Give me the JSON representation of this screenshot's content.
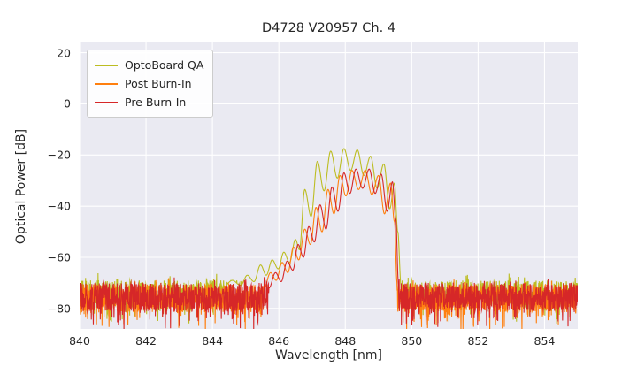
{
  "figure": {
    "background": "#ffffff"
  },
  "chart_data": {
    "type": "line",
    "title": "D4728 V20957 Ch. 4",
    "xlabel": "Wavelength [nm]",
    "ylabel": "Optical Power [dB]",
    "xlim": [
      840,
      855
    ],
    "ylim": [
      -88,
      24
    ],
    "xticks": [
      840,
      842,
      844,
      846,
      848,
      850,
      852,
      854
    ],
    "yticks": [
      20,
      0,
      -20,
      -40,
      -60,
      -80
    ],
    "grid": true,
    "plot_bg": "#eaeaf2",
    "grid_color": "#ffffff",
    "legend_position": "upper left",
    "series": [
      {
        "name": "OptoBoard QA",
        "color": "#bcbd22",
        "noise_floor_db": {
          "mean": -74,
          "amplitude": 5,
          "spike_depth": 8
        },
        "peak_points": [
          [
            844.3,
            -72
          ],
          [
            844.6,
            -69
          ],
          [
            844.85,
            -71
          ],
          [
            845.05,
            -67
          ],
          [
            845.25,
            -69.5
          ],
          [
            845.45,
            -63
          ],
          [
            845.62,
            -67
          ],
          [
            845.8,
            -61
          ],
          [
            845.98,
            -64.5
          ],
          [
            846.15,
            -58
          ],
          [
            846.32,
            -62
          ],
          [
            846.5,
            -53
          ],
          [
            846.62,
            -57
          ],
          [
            846.78,
            -33.5
          ],
          [
            846.97,
            -44
          ],
          [
            847.16,
            -22.5
          ],
          [
            847.36,
            -34
          ],
          [
            847.56,
            -18.5
          ],
          [
            847.76,
            -29
          ],
          [
            847.96,
            -17.5
          ],
          [
            848.16,
            -26
          ],
          [
            848.36,
            -18
          ],
          [
            848.56,
            -28
          ],
          [
            848.76,
            -20.5
          ],
          [
            848.96,
            -33
          ],
          [
            849.16,
            -23.5
          ],
          [
            849.34,
            -41
          ],
          [
            849.48,
            -31
          ],
          [
            849.58,
            -50
          ],
          [
            849.68,
            -71
          ]
        ]
      },
      {
        "name": "Post Burn-In",
        "color": "#ff7f0e",
        "noise_floor_db": {
          "mean": -76,
          "amplitude": 5.5,
          "spike_depth": 8
        },
        "peak_points": [
          [
            845.55,
            -72
          ],
          [
            845.75,
            -66
          ],
          [
            845.92,
            -69
          ],
          [
            846.1,
            -62
          ],
          [
            846.27,
            -66
          ],
          [
            846.44,
            -56
          ],
          [
            846.6,
            -61
          ],
          [
            846.78,
            -49
          ],
          [
            846.95,
            -55
          ],
          [
            847.12,
            -40.5
          ],
          [
            847.3,
            -50
          ],
          [
            847.48,
            -33.5
          ],
          [
            847.66,
            -43
          ],
          [
            847.84,
            -28
          ],
          [
            848.02,
            -36
          ],
          [
            848.2,
            -26
          ],
          [
            848.4,
            -33.5
          ],
          [
            848.6,
            -26
          ],
          [
            848.8,
            -35.5
          ],
          [
            849.0,
            -28
          ],
          [
            849.18,
            -43
          ],
          [
            849.36,
            -31
          ],
          [
            849.48,
            -46
          ],
          [
            849.56,
            -70
          ]
        ]
      },
      {
        "name": "Pre Burn-In",
        "color": "#d62728",
        "noise_floor_db": {
          "mean": -75.5,
          "amplitude": 5.5,
          "spike_depth": 8
        },
        "peak_points": [
          [
            845.7,
            -72
          ],
          [
            845.9,
            -66
          ],
          [
            846.07,
            -69.5
          ],
          [
            846.25,
            -61.5
          ],
          [
            846.42,
            -65
          ],
          [
            846.58,
            -55
          ],
          [
            846.74,
            -60
          ],
          [
            846.9,
            -48
          ],
          [
            847.07,
            -54
          ],
          [
            847.24,
            -39.5
          ],
          [
            847.42,
            -49
          ],
          [
            847.6,
            -32.5
          ],
          [
            847.78,
            -42
          ],
          [
            847.96,
            -27
          ],
          [
            848.14,
            -35
          ],
          [
            848.32,
            -25.5
          ],
          [
            848.52,
            -33
          ],
          [
            848.72,
            -25.5
          ],
          [
            848.9,
            -35
          ],
          [
            849.08,
            -27.5
          ],
          [
            849.26,
            -42
          ],
          [
            849.42,
            -30.5
          ],
          [
            849.52,
            -45
          ],
          [
            849.6,
            -70
          ]
        ]
      }
    ]
  }
}
